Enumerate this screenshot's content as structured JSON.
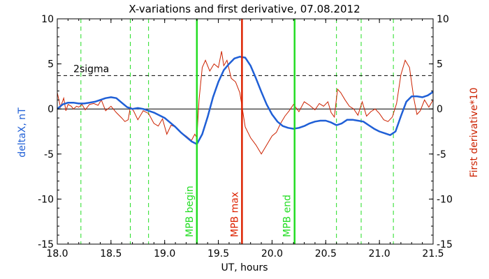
{
  "chart_data": {
    "type": "line",
    "title": "X-variations and first derivative, 07.08.2012",
    "xlabel": "UT, hours",
    "ylabel_left": "deltaX, nT",
    "ylabel_right": "First derivative*10",
    "xlim": [
      18.0,
      21.5
    ],
    "ylim": [
      -15,
      10
    ],
    "x_ticks": [
      "18.0",
      "18.5",
      "19.0",
      "19.5",
      "20.0",
      "20.5",
      "21.0",
      "21.5"
    ],
    "x_tick_values": [
      18.0,
      18.5,
      19.0,
      19.5,
      20.0,
      20.5,
      21.0,
      21.5
    ],
    "y_ticks": [
      "10",
      "5",
      "0",
      "-5",
      "-10",
      "-15"
    ],
    "y_tick_values": [
      10,
      5,
      0,
      -5,
      -10,
      -15
    ],
    "threshold": {
      "label": "2sigma",
      "value": 3.7
    },
    "zero_line": 0,
    "colors": {
      "deltaX": "#1f5fd6",
      "derivative": "#cc2200",
      "mpb_boundary": "#22dd22",
      "mpb_max": "#dd2200",
      "dashed_green": "#22dd22",
      "axes": "#000000"
    },
    "markers": [
      {
        "label": "MPB begin",
        "x": 19.3,
        "color": "#22dd22"
      },
      {
        "label": "MPB max",
        "x": 19.72,
        "color": "#dd2200"
      },
      {
        "label": "MPB end",
        "x": 20.21,
        "color": "#22dd22"
      }
    ],
    "dashed_lines_x": [
      18.22,
      18.68,
      18.85,
      20.6,
      20.83,
      21.13
    ],
    "series": [
      {
        "name": "deltaX",
        "axis": "left",
        "x": [
          18.0,
          18.05,
          18.1,
          18.15,
          18.2,
          18.25,
          18.3,
          18.35,
          18.4,
          18.45,
          18.5,
          18.55,
          18.6,
          18.65,
          18.7,
          18.75,
          18.8,
          18.85,
          18.9,
          18.95,
          19.0,
          19.05,
          19.1,
          19.15,
          19.2,
          19.25,
          19.3,
          19.35,
          19.4,
          19.45,
          19.5,
          19.55,
          19.6,
          19.65,
          19.7,
          19.75,
          19.8,
          19.85,
          19.9,
          19.95,
          20.0,
          20.05,
          20.1,
          20.15,
          20.2,
          20.25,
          20.3,
          20.35,
          20.4,
          20.45,
          20.5,
          20.55,
          20.6,
          20.65,
          20.7,
          20.75,
          20.8,
          20.85,
          20.9,
          20.95,
          21.0,
          21.05,
          21.1,
          21.15,
          21.2,
          21.25,
          21.3,
          21.35,
          21.4,
          21.45,
          21.5
        ],
        "y": [
          0.0,
          0.5,
          0.7,
          0.7,
          0.6,
          0.6,
          0.7,
          0.8,
          1.0,
          1.2,
          1.3,
          1.2,
          0.7,
          0.2,
          0.0,
          0.1,
          0.0,
          -0.2,
          -0.4,
          -0.7,
          -1.0,
          -1.5,
          -2.0,
          -2.6,
          -3.1,
          -3.6,
          -3.9,
          -2.8,
          -0.9,
          1.3,
          3.0,
          4.3,
          5.0,
          5.6,
          5.8,
          5.7,
          4.8,
          3.4,
          1.9,
          0.5,
          -0.6,
          -1.4,
          -1.9,
          -2.1,
          -2.2,
          -2.1,
          -1.9,
          -1.6,
          -1.4,
          -1.3,
          -1.3,
          -1.5,
          -1.8,
          -1.6,
          -1.2,
          -1.2,
          -1.3,
          -1.4,
          -1.8,
          -2.2,
          -2.5,
          -2.7,
          -2.9,
          -2.5,
          -0.8,
          0.8,
          1.4,
          1.4,
          1.3,
          1.5,
          1.9
        ]
      },
      {
        "name": "derivative",
        "axis": "right",
        "x": [
          18.0,
          18.03,
          18.06,
          18.08,
          18.1,
          18.13,
          18.15,
          18.18,
          18.2,
          18.23,
          18.26,
          18.3,
          18.34,
          18.38,
          18.41,
          18.45,
          18.5,
          18.55,
          18.6,
          18.63,
          18.66,
          18.68,
          18.71,
          18.75,
          18.8,
          18.85,
          18.9,
          18.94,
          18.98,
          19.02,
          19.06,
          19.1,
          19.15,
          19.2,
          19.25,
          19.28,
          19.3,
          19.32,
          19.35,
          19.38,
          19.42,
          19.46,
          19.5,
          19.53,
          19.55,
          19.58,
          19.62,
          19.66,
          19.7,
          19.72,
          19.75,
          19.8,
          19.85,
          19.9,
          19.93,
          19.96,
          20.0,
          20.04,
          20.08,
          20.12,
          20.16,
          20.2,
          20.25,
          20.3,
          20.35,
          20.4,
          20.44,
          20.48,
          20.52,
          20.55,
          20.58,
          20.61,
          20.64,
          20.68,
          20.72,
          20.76,
          20.8,
          20.84,
          20.88,
          20.92,
          20.96,
          21.0,
          21.04,
          21.08,
          21.12,
          21.16,
          21.2,
          21.24,
          21.28,
          21.32,
          21.35,
          21.38,
          21.42,
          21.46,
          21.5
        ],
        "y": [
          1.8,
          0.2,
          1.2,
          -0.2,
          0.5,
          0.3,
          0.0,
          0.3,
          0.2,
          0.5,
          -0.1,
          0.5,
          0.6,
          0.4,
          1.0,
          -0.2,
          0.3,
          -0.4,
          -1.0,
          -1.4,
          -1.2,
          0.2,
          -0.2,
          -1.2,
          -0.2,
          -0.5,
          -1.6,
          -1.9,
          -1.1,
          -2.8,
          -1.8,
          -2.0,
          -2.6,
          -3.0,
          -3.5,
          -2.8,
          -3.2,
          1.0,
          4.6,
          5.4,
          4.2,
          5.0,
          4.6,
          6.4,
          4.8,
          5.4,
          3.4,
          3.0,
          1.8,
          0.3,
          -2.0,
          -3.2,
          -4.0,
          -5.0,
          -4.4,
          -3.8,
          -3.0,
          -2.6,
          -1.6,
          -0.8,
          -0.2,
          0.5,
          -0.3,
          0.8,
          0.4,
          -0.1,
          0.6,
          0.3,
          0.8,
          -0.4,
          -0.9,
          2.2,
          1.8,
          1.0,
          0.3,
          0.0,
          -0.7,
          0.8,
          -0.8,
          -0.3,
          0.0,
          -0.5,
          -1.2,
          -1.4,
          -0.9,
          0.6,
          3.8,
          5.4,
          4.6,
          1.2,
          -0.6,
          -0.2,
          1.0,
          0.2,
          1.0
        ]
      }
    ]
  }
}
